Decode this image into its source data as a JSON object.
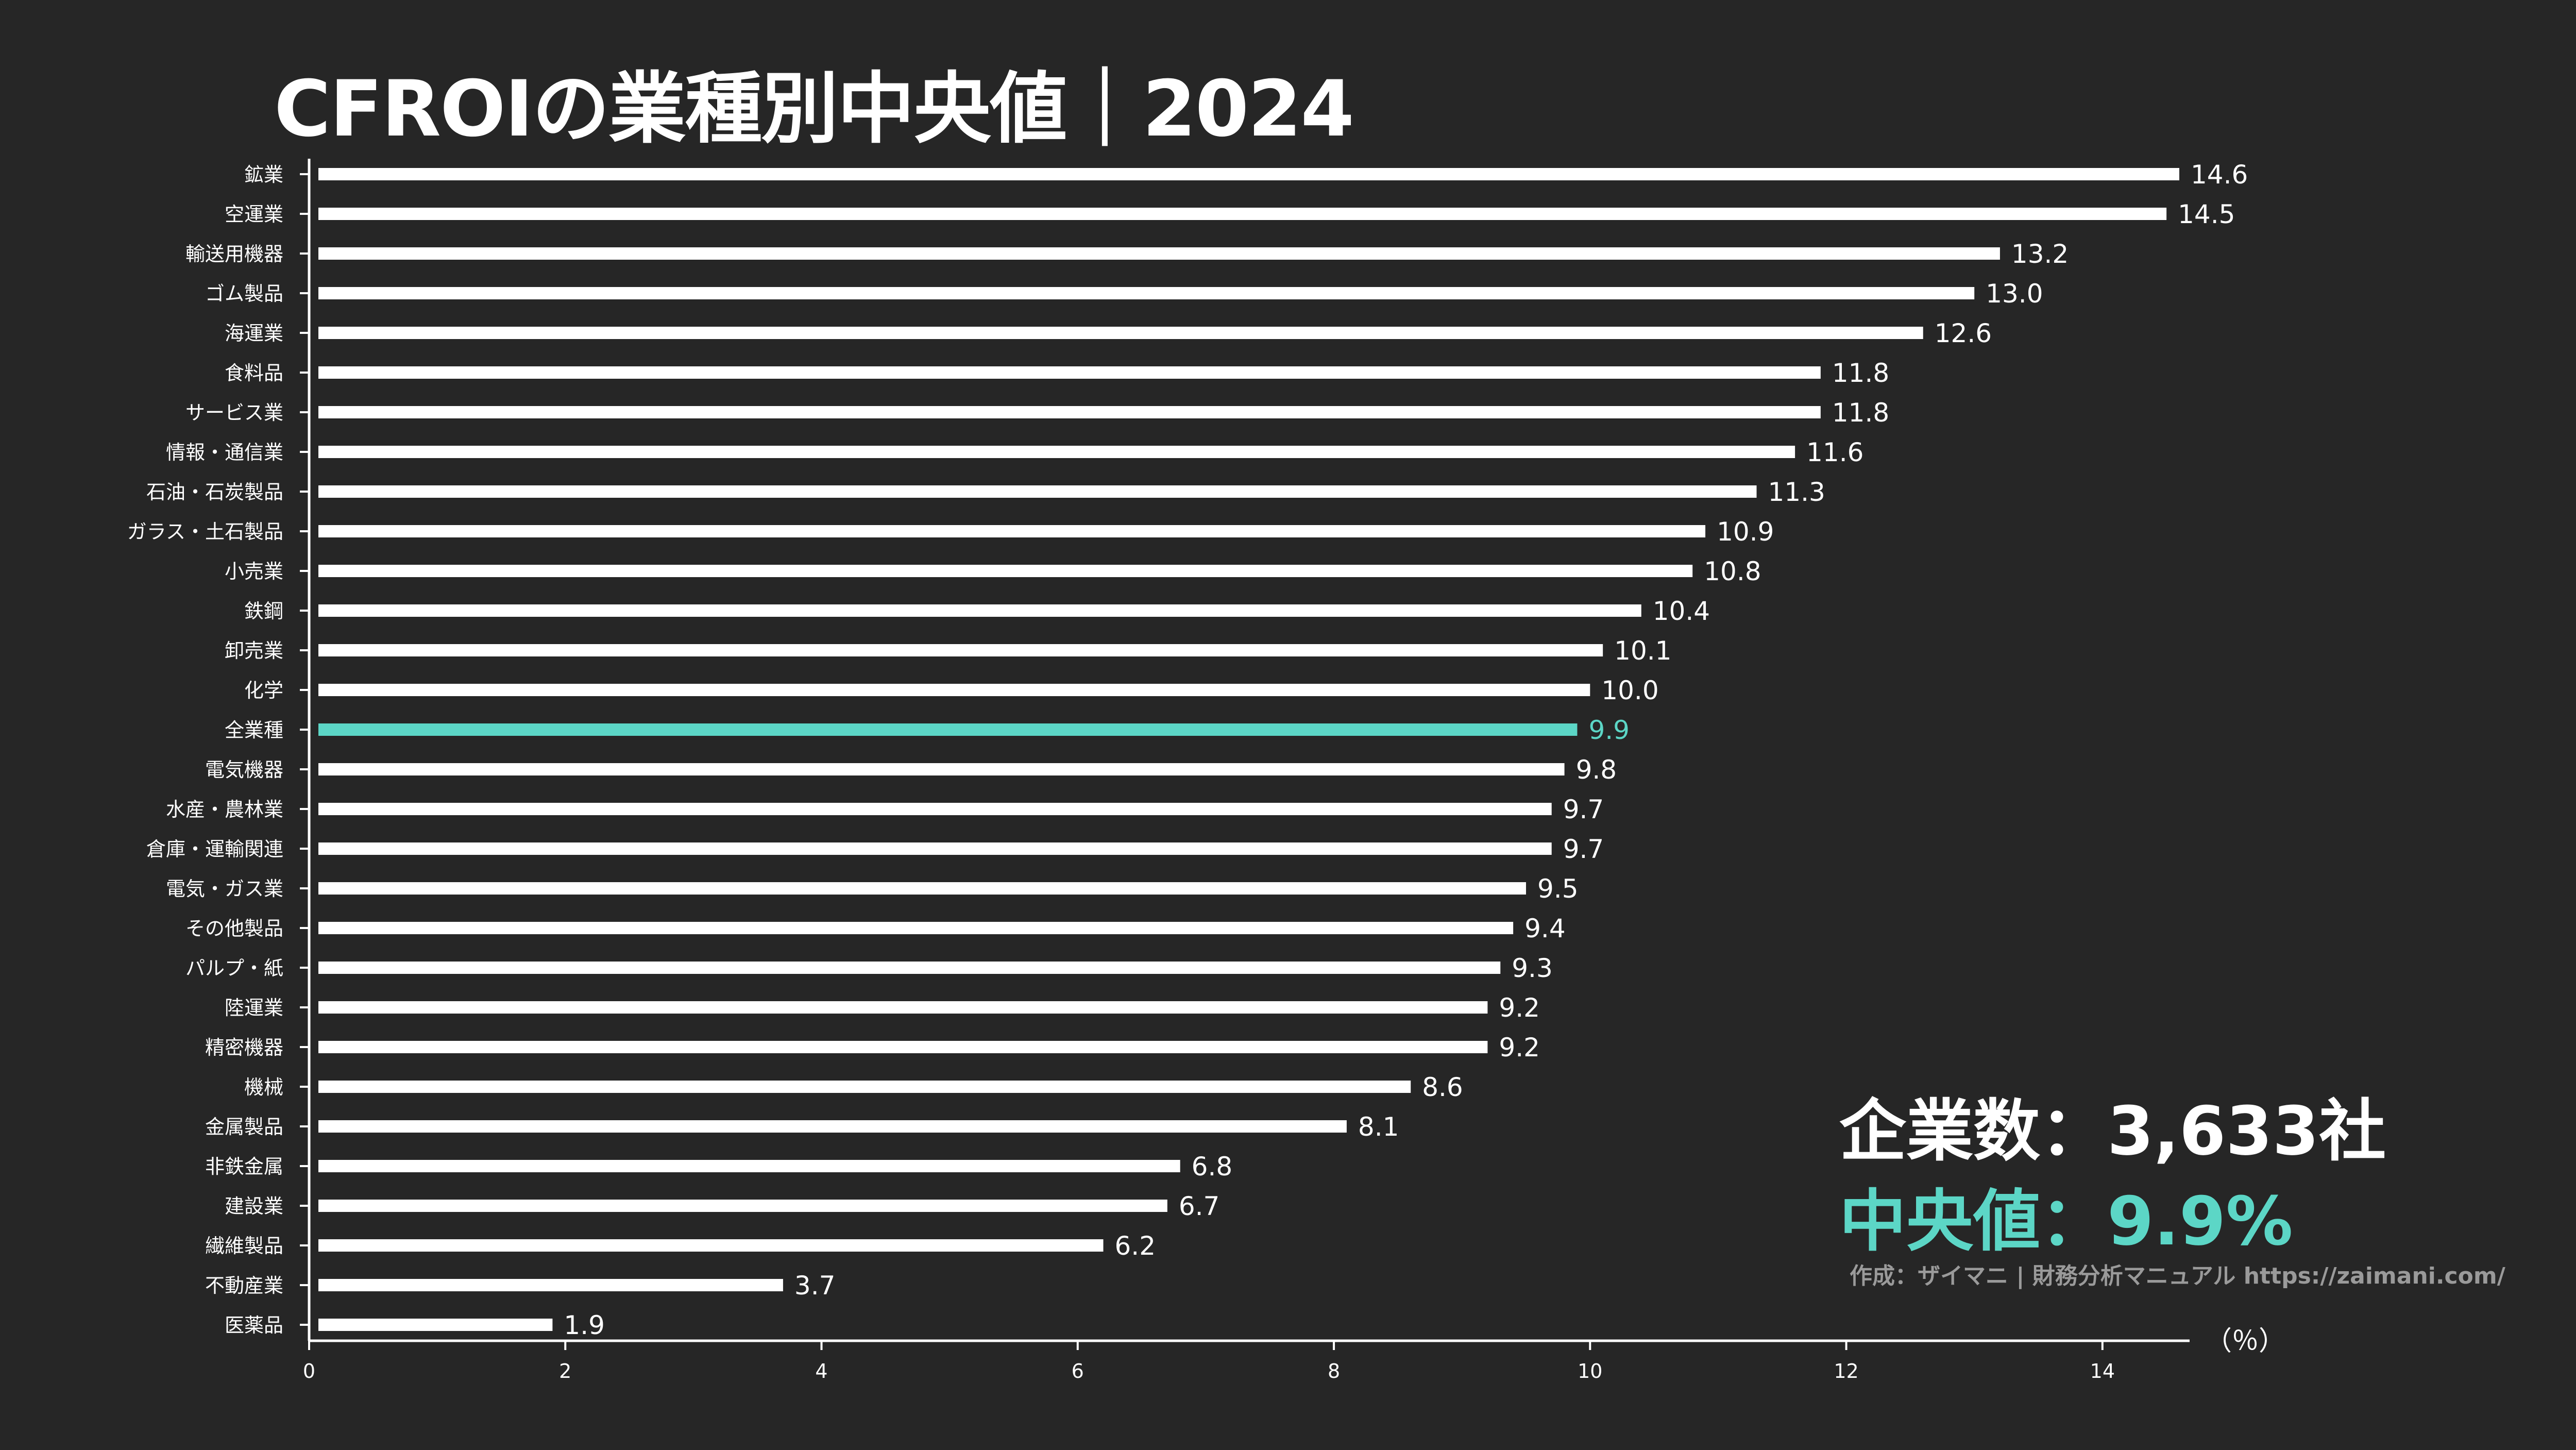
{
  "chart_data": {
    "type": "bar",
    "orientation": "horizontal",
    "title": "CFROIの業種別中央値｜2024",
    "xlabel": "（％）",
    "xlim": [
      0,
      14.6
    ],
    "xticks": [
      0,
      2,
      4,
      6,
      8,
      10,
      12,
      14
    ],
    "categories": [
      "鉱業",
      "空運業",
      "輸送用機器",
      "ゴム製品",
      "海運業",
      "食料品",
      "サービス業",
      "情報・通信業",
      "石油・石炭製品",
      "ガラス・土石製品",
      "小売業",
      "鉄鋼",
      "卸売業",
      "化学",
      "全業種",
      "電気機器",
      "水産・農林業",
      "倉庫・運輸関連",
      "電気・ガス業",
      "その他製品",
      "パルプ・紙",
      "陸運業",
      "精密機器",
      "機械",
      "金属製品",
      "非鉄金属",
      "建設業",
      "繊維製品",
      "不動産業",
      "医薬品"
    ],
    "values": [
      14.6,
      14.5,
      13.2,
      13.0,
      12.6,
      11.8,
      11.8,
      11.6,
      11.3,
      10.9,
      10.8,
      10.4,
      10.1,
      10.0,
      9.9,
      9.8,
      9.7,
      9.7,
      9.5,
      9.4,
      9.3,
      9.2,
      9.2,
      8.6,
      8.1,
      6.8,
      6.7,
      6.2,
      3.7,
      1.9
    ],
    "labels": [
      "14.6",
      "14.5",
      "13.2",
      "13.0",
      "12.6",
      "11.8",
      "11.8",
      "11.6",
      "11.3",
      "10.9",
      "10.8",
      "10.4",
      "10.1",
      "10.0",
      "9.9",
      "9.8",
      "9.7",
      "9.7",
      "9.5",
      "9.4",
      "9.3",
      "9.2",
      "9.2",
      "8.6",
      "8.1",
      "6.8",
      "6.7",
      "6.2",
      "3.7",
      "1.9"
    ],
    "highlight_category": "全業種",
    "bar_color": "#ffffff",
    "highlight_color": "#5cd6c6",
    "axis_color": "#ffffff"
  },
  "stats": {
    "company_count": "企業数：3,633社",
    "median": "中央値：9.9%"
  },
  "credit": "作成：ザイマニ | 財務分析マニュアル https://zaimani.com/"
}
